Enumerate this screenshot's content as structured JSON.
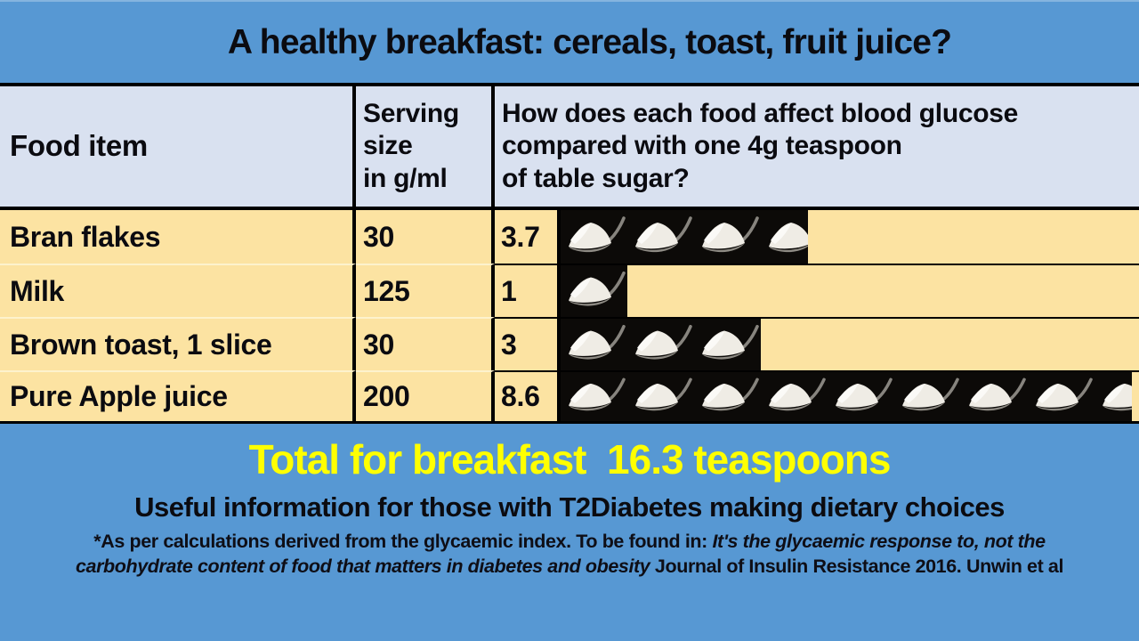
{
  "title": "A healthy breakfast: cereals, toast, fruit juice?",
  "table": {
    "headers": {
      "food": "Food item",
      "serving": "Serving\nsize\nin g/ml",
      "glucose": "How does each food affect blood glucose\ncompared with one 4g teaspoon\nof table sugar?"
    },
    "rows": [
      {
        "label": "Bran flakes",
        "serving": "30",
        "teaspoons": 3.7
      },
      {
        "label": "Milk",
        "serving": "125",
        "teaspoons": 1
      },
      {
        "label": "Brown toast, 1 slice",
        "serving": "30",
        "teaspoons": 3
      },
      {
        "label": "Pure Apple juice",
        "serving": "200",
        "teaspoons": 8.6
      }
    ]
  },
  "summary": {
    "total_line": "Total for breakfast  16.3 teaspoons",
    "info_line": "Useful information for those with T2Diabetes making dietary choices",
    "footnote": {
      "line1_regular": "*As per calculations derived from the glycaemic index. To be found in: ",
      "line1_italic": "It's the glycaemic response to, not the",
      "line2_italic": "carbohydrate content of food that matters in diabetes and obesity",
      "line2_regular": "  Journal of Insulin Resistance 2016. Unwin et al"
    }
  },
  "icons": {
    "teaspoon": "teaspoon-heaped-with-sugar"
  },
  "colors": {
    "background_blue": "#5798d3",
    "header_fill": "#d9e1f0",
    "row_fill": "#fce3a2",
    "pictogram_tile": "#0c0a08",
    "total_text": "#ffff00",
    "border": "#000000"
  },
  "chart_data": {
    "type": "bar",
    "subtype": "pictogram",
    "title": "A healthy breakfast: cereals, toast, fruit juice?",
    "categories": [
      "Bran flakes",
      "Milk",
      "Brown toast, 1 slice",
      "Pure Apple juice"
    ],
    "series": [
      {
        "name": "Serving size in g/ml",
        "values": [
          30,
          125,
          30,
          200
        ]
      },
      {
        "name": "Blood glucose effect in 4g teaspoons of table sugar",
        "values": [
          3.7,
          1,
          3,
          8.6
        ]
      }
    ],
    "unit_icon": "teaspoon of sugar",
    "total_label": "Total for breakfast",
    "total_value": 16.3,
    "legend_position": "none",
    "grid": false
  }
}
